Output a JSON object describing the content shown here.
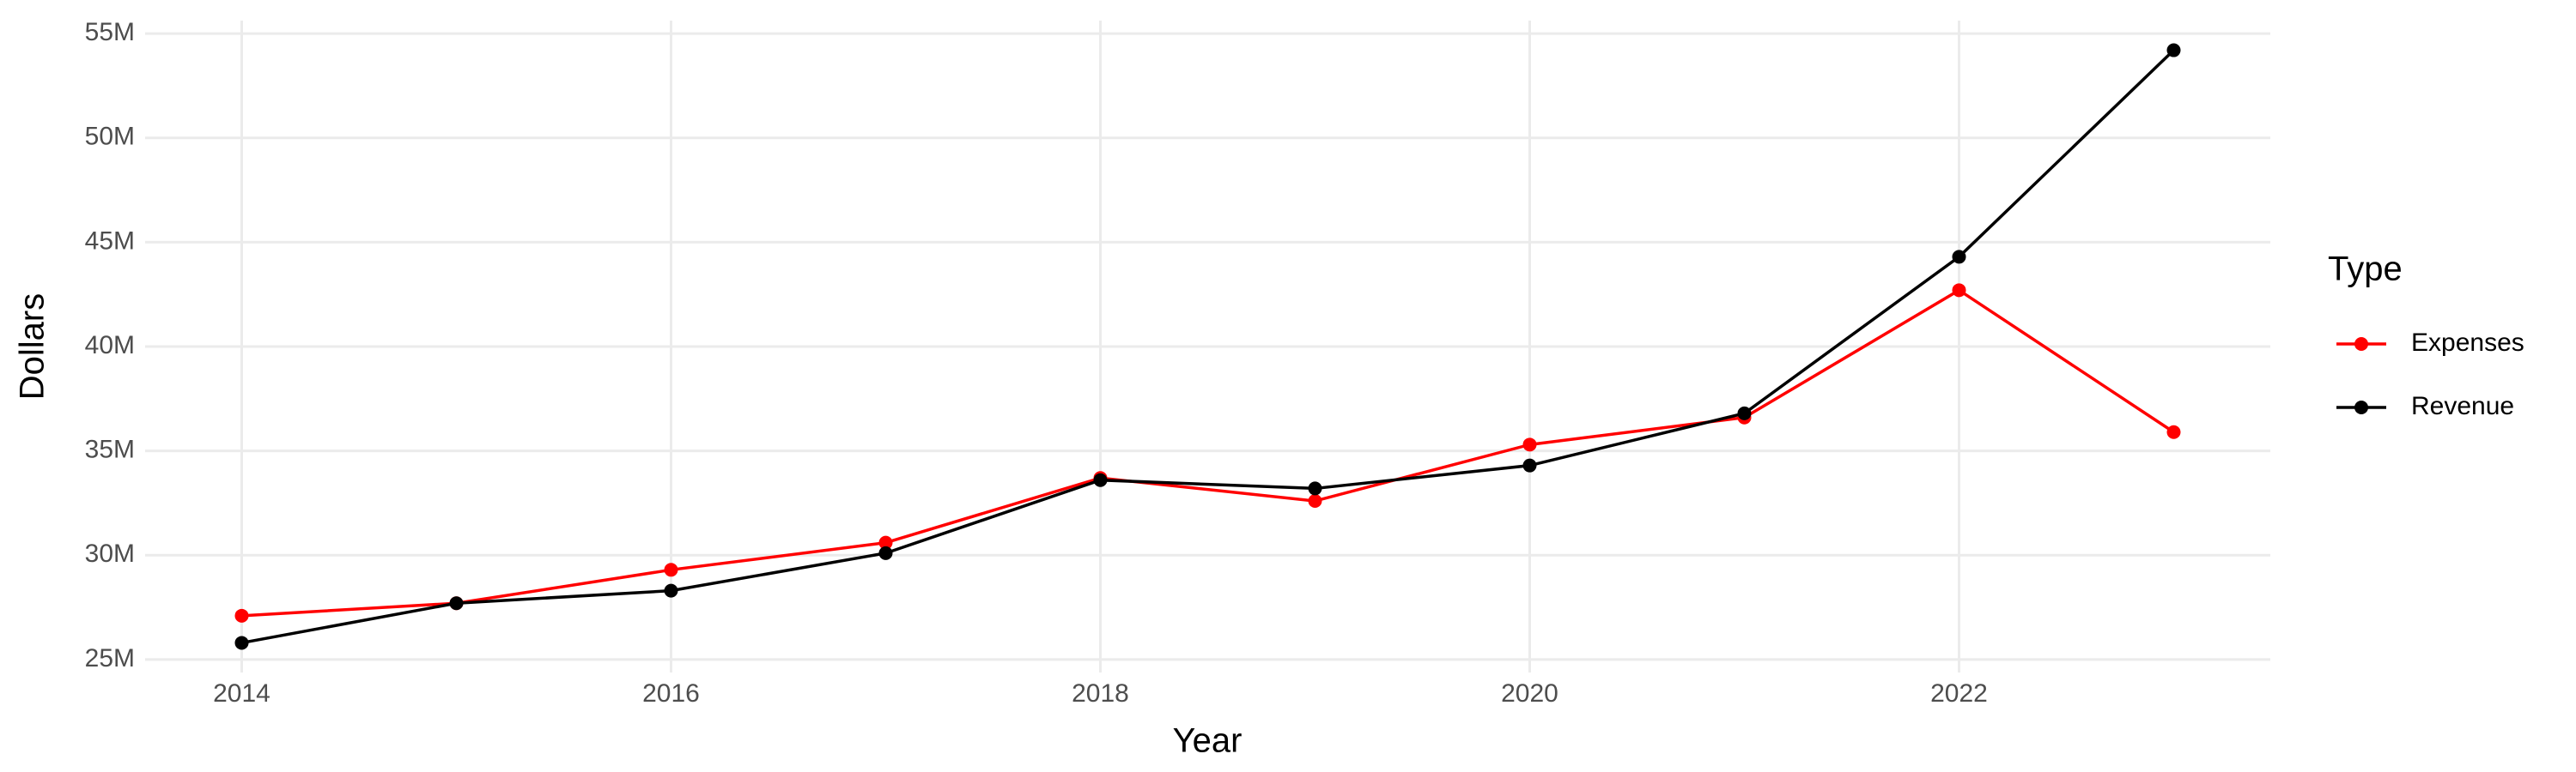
{
  "chart_data": {
    "type": "line",
    "x_label": "Year",
    "y_label": "Dollars",
    "legend_title": "Type",
    "x": [
      2014,
      2015,
      2016,
      2017,
      2018,
      2019,
      2020,
      2021,
      2022,
      2023
    ],
    "series": [
      {
        "name": "Expenses",
        "color": "#ff0000",
        "values": [
          27100000,
          27700000,
          29300000,
          30600000,
          33700000,
          32600000,
          35300000,
          36600000,
          42700000,
          35900000
        ]
      },
      {
        "name": "Revenue",
        "color": "#000000",
        "values": [
          25800000,
          27700000,
          28300000,
          30100000,
          33600000,
          33200000,
          34300000,
          36800000,
          44300000,
          54200000
        ]
      }
    ],
    "xlim": [
      2013.55,
      2023.45
    ],
    "xticks": [
      2014,
      2016,
      2018,
      2020,
      2022
    ],
    "ylim": [
      24380000,
      55620000
    ],
    "yticks": [
      {
        "value": 25000000,
        "label": "25M"
      },
      {
        "value": 30000000,
        "label": "30M"
      },
      {
        "value": 35000000,
        "label": "35M"
      },
      {
        "value": 40000000,
        "label": "40M"
      },
      {
        "value": 45000000,
        "label": "45M"
      },
      {
        "value": 50000000,
        "label": "50M"
      },
      {
        "value": 55000000,
        "label": "55M"
      }
    ],
    "grid": true,
    "legend_position": "right"
  }
}
